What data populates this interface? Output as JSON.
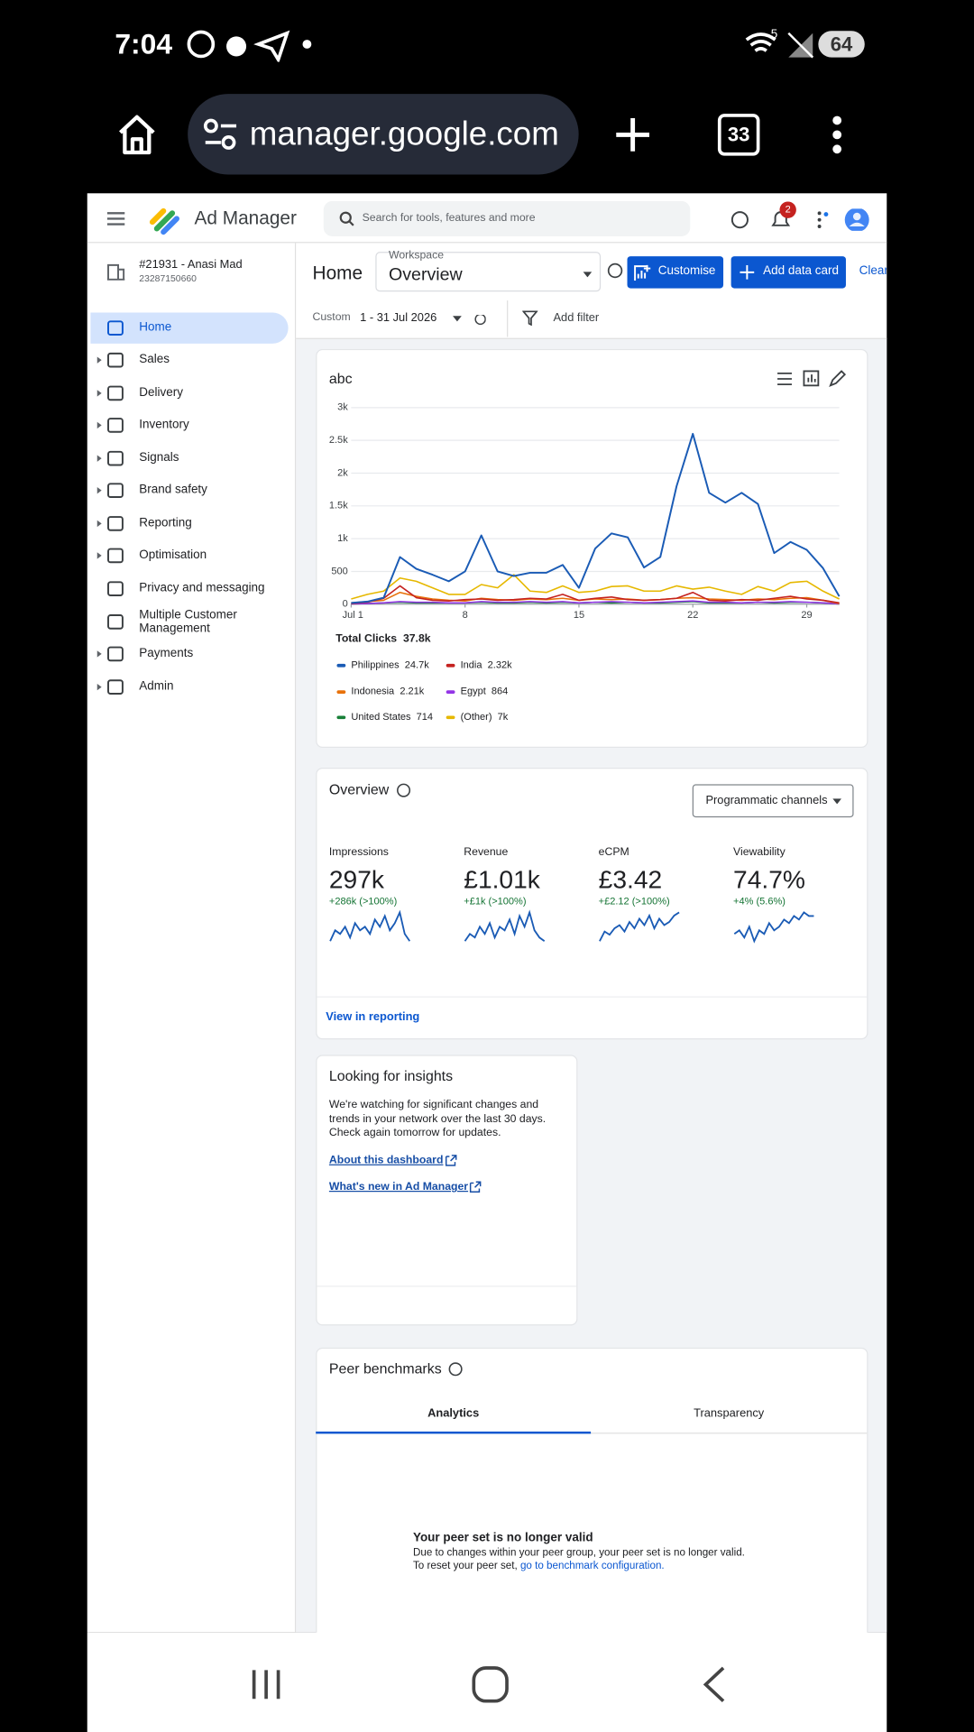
{
  "status_bar": {
    "time": "7:04",
    "battery": "64",
    "signal": "5"
  },
  "browser": {
    "url": "manager.google.com",
    "tabs": "33"
  },
  "app": {
    "name": "Ad Manager",
    "search_placeholder": "Search for tools, features and more",
    "notifications": "2"
  },
  "account": {
    "name": "#21931 - Anasi Mad",
    "id": "23287150660"
  },
  "nav": [
    "Home",
    "Sales",
    "Delivery",
    "Inventory",
    "Signals",
    "Brand safety",
    "Reporting",
    "Optimisation",
    "Privacy and messaging",
    "Multiple Customer Management",
    "Payments",
    "Admin"
  ],
  "header": {
    "page": "Home",
    "workspace_label": "Workspace",
    "workspace": "Overview",
    "customise": "Customise",
    "add_card": "Add data card",
    "clear": "Clear"
  },
  "filter": {
    "range_label": "Custom",
    "range": "1 - 31 Jul 2026",
    "add_filter": "Add filter"
  },
  "chart_data": {
    "type": "line",
    "title": "abc",
    "x": [
      1,
      2,
      3,
      4,
      5,
      6,
      7,
      8,
      9,
      10,
      11,
      12,
      13,
      14,
      15,
      16,
      17,
      18,
      19,
      20,
      21,
      22,
      23,
      24,
      25,
      26,
      27,
      28,
      29,
      30,
      31
    ],
    "xlim": [
      1,
      31
    ],
    "xticks": [
      {
        "value": 1,
        "label": "Jul 1"
      },
      8,
      15,
      22,
      29
    ],
    "ylim": [
      0,
      3000
    ],
    "yticks": [
      0,
      500,
      {
        "value": 1000,
        "label": "1k"
      },
      {
        "value": 1500,
        "label": "1.5k"
      },
      {
        "value": 2000,
        "label": "2k"
      },
      {
        "value": 2500,
        "label": "2.5k"
      },
      {
        "value": 3000,
        "label": "3k"
      }
    ],
    "grid": true,
    "total_label": "Total Clicks",
    "total": "37.8k",
    "series": [
      {
        "name": "Philippines",
        "total": "24.7k",
        "color": "#1a5bb5",
        "values": [
          20,
          40,
          100,
          720,
          540,
          450,
          350,
          500,
          1050,
          500,
          430,
          480,
          480,
          600,
          250,
          850,
          1080,
          1020,
          560,
          720,
          1800,
          2600,
          1700,
          1550,
          1700,
          1530,
          780,
          950,
          830,
          550,
          120
        ]
      },
      {
        "name": "India",
        "total": "2.32k",
        "color": "#c5221f",
        "values": [
          10,
          30,
          90,
          280,
          100,
          60,
          50,
          70,
          80,
          60,
          70,
          90,
          80,
          150,
          60,
          90,
          110,
          70,
          60,
          70,
          90,
          180,
          60,
          50,
          70,
          60,
          90,
          120,
          80,
          60,
          20
        ]
      },
      {
        "name": "Indonesia",
        "total": "2.21k",
        "color": "#e8710a",
        "values": [
          20,
          40,
          60,
          180,
          120,
          80,
          60,
          50,
          90,
          70,
          60,
          80,
          70,
          90,
          60,
          80,
          70,
          80,
          60,
          70,
          90,
          100,
          80,
          70,
          60,
          80,
          70,
          90,
          100,
          60,
          10
        ]
      },
      {
        "name": "Egypt",
        "total": "864",
        "color": "#9334e6",
        "values": [
          5,
          10,
          20,
          40,
          30,
          30,
          20,
          20,
          40,
          30,
          30,
          40,
          30,
          40,
          20,
          30,
          40,
          30,
          20,
          30,
          40,
          50,
          30,
          30,
          20,
          30,
          30,
          40,
          30,
          20,
          5
        ]
      },
      {
        "name": "United States",
        "total": "714",
        "color": "#188038",
        "values": [
          5,
          10,
          20,
          30,
          20,
          20,
          20,
          20,
          30,
          20,
          20,
          30,
          20,
          30,
          20,
          30,
          20,
          30,
          20,
          20,
          30,
          40,
          20,
          20,
          20,
          30,
          20,
          30,
          30,
          20,
          5
        ]
      },
      {
        "name": "(Other)",
        "total": "7k",
        "color": "#e6b800",
        "values": [
          80,
          150,
          200,
          400,
          350,
          250,
          150,
          150,
          300,
          250,
          450,
          200,
          180,
          280,
          180,
          200,
          270,
          280,
          200,
          200,
          280,
          230,
          260,
          200,
          150,
          270,
          200,
          330,
          350,
          200,
          80
        ]
      }
    ]
  },
  "overview": {
    "title": "Overview",
    "dropdown": "Programmatic channels",
    "link": "View in reporting",
    "metrics": [
      {
        "name": "Impressions",
        "value": "297k",
        "change": "+286k (>100%)",
        "trend": [
          2,
          5,
          4,
          6,
          3,
          7,
          5,
          6,
          4,
          8,
          6,
          9,
          5,
          7,
          10,
          4,
          2
        ]
      },
      {
        "name": "Revenue",
        "value": "£1.01k",
        "change": "+£1k (>100%)",
        "trend": [
          2,
          4,
          3,
          6,
          4,
          7,
          3,
          6,
          5,
          8,
          4,
          9,
          6,
          10,
          5,
          3,
          2
        ]
      },
      {
        "name": "eCPM",
        "value": "£3.42",
        "change": "+£2.12 (>100%)",
        "trend": [
          1,
          4,
          3,
          5,
          6,
          4,
          7,
          5,
          8,
          6,
          9,
          5,
          8,
          6,
          7,
          9,
          10
        ]
      },
      {
        "name": "Viewability",
        "value": "74.7%",
        "change": "+4% (5.6%)",
        "trend": [
          4,
          5,
          3,
          6,
          2,
          5,
          4,
          7,
          5,
          6,
          8,
          7,
          9,
          8,
          10,
          9,
          9
        ]
      }
    ]
  },
  "insights": {
    "title": "Looking for insights",
    "text": [
      "We're watching for significant changes and",
      "trends in your network over the last 30 days.",
      "Check again tomorrow for updates."
    ],
    "links": [
      "About this dashboard",
      "What's new in Ad Manager"
    ]
  },
  "peer": {
    "title": "Peer benchmarks",
    "tabs": [
      "Analytics",
      "Transparency"
    ],
    "heading": "Your peer set is no longer valid",
    "line1": "Due to changes within your peer group, your peer set is no longer valid.",
    "line2_prefix": "To reset your peer set,",
    "line2_link": "go to benchmark configuration."
  }
}
